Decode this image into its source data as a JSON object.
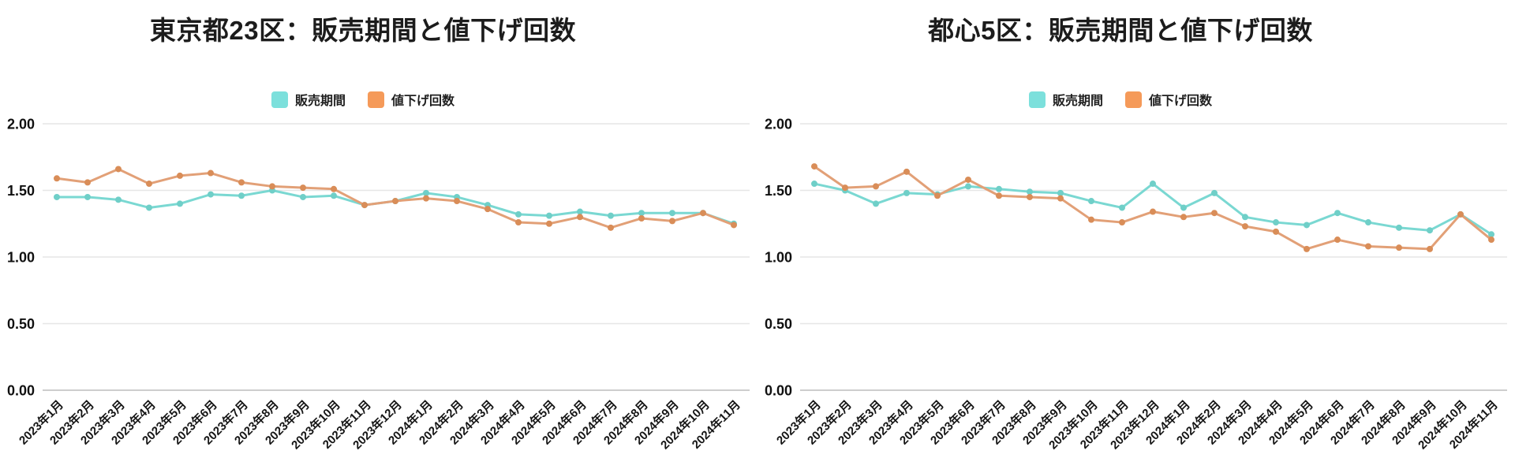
{
  "page": {
    "background": "#ffffff"
  },
  "colors": {
    "title_text": "#1c1c1c",
    "axis_text": "#101010",
    "gridline": "#e6e6e6",
    "baseline": "#cdcdcd",
    "sales_period_line": "#7ad8d2",
    "sales_period_marker": "#6fcfc8",
    "sales_period_swatch": "#7ce0dc",
    "price_cut_line": "#e2a077",
    "price_cut_marker": "#d98d58",
    "price_cut_swatch": "#f59a59"
  },
  "chart_data": [
    {
      "type": "line",
      "title": "東京都23区：販売期間と値下げ回数",
      "legend_position": "top",
      "grid": true,
      "ylim": [
        0,
        2.0
      ],
      "yticks": [
        "0.00",
        "0.50",
        "1.00",
        "1.50",
        "2.00"
      ],
      "categories": [
        "2023年1月",
        "2023年2月",
        "2023年3月",
        "2023年4月",
        "2023年5月",
        "2023年6月",
        "2023年7月",
        "2023年8月",
        "2023年9月",
        "2023年10月",
        "2023年11月",
        "2023年12月",
        "2024年1月",
        "2024年2月",
        "2024年3月",
        "2024年4月",
        "2024年5月",
        "2024年6月",
        "2024年7月",
        "2024年8月",
        "2024年9月",
        "2024年10月",
        "2024年11月"
      ],
      "series": [
        {
          "name": "販売期間",
          "color": "#7ad8d2",
          "marker_color": "#6fcfc8",
          "swatch_color": "#7ce0dc",
          "values": [
            1.45,
            1.45,
            1.43,
            1.37,
            1.4,
            1.47,
            1.46,
            1.5,
            1.45,
            1.46,
            1.39,
            1.42,
            1.48,
            1.45,
            1.39,
            1.32,
            1.31,
            1.34,
            1.31,
            1.33,
            1.33,
            1.33,
            1.25
          ]
        },
        {
          "name": "値下げ回数",
          "color": "#e2a077",
          "marker_color": "#d98d58",
          "swatch_color": "#f59a59",
          "values": [
            1.59,
            1.56,
            1.66,
            1.55,
            1.61,
            1.63,
            1.56,
            1.53,
            1.52,
            1.51,
            1.39,
            1.42,
            1.44,
            1.42,
            1.36,
            1.26,
            1.25,
            1.3,
            1.22,
            1.29,
            1.27,
            1.33,
            1.24
          ]
        }
      ]
    },
    {
      "type": "line",
      "title": "都心5区：販売期間と値下げ回数",
      "legend_position": "top",
      "grid": true,
      "ylim": [
        0,
        2.0
      ],
      "yticks": [
        "0.00",
        "0.50",
        "1.00",
        "1.50",
        "2.00"
      ],
      "categories": [
        "2023年1月",
        "2023年2月",
        "2023年3月",
        "2023年4月",
        "2023年5月",
        "2023年6月",
        "2023年7月",
        "2023年8月",
        "2023年9月",
        "2023年10月",
        "2023年11月",
        "2023年12月",
        "2024年1月",
        "2024年2月",
        "2024年3月",
        "2024年4月",
        "2024年5月",
        "2024年6月",
        "2024年7月",
        "2024年8月",
        "2024年9月",
        "2024年10月",
        "2024年11月"
      ],
      "series": [
        {
          "name": "販売期間",
          "color": "#7ad8d2",
          "marker_color": "#6fcfc8",
          "swatch_color": "#7ce0dc",
          "values": [
            1.55,
            1.5,
            1.4,
            1.48,
            1.47,
            1.53,
            1.51,
            1.49,
            1.48,
            1.42,
            1.37,
            1.55,
            1.37,
            1.48,
            1.3,
            1.26,
            1.24,
            1.33,
            1.26,
            1.22,
            1.2,
            1.32,
            1.17
          ]
        },
        {
          "name": "値下げ回数",
          "color": "#e2a077",
          "marker_color": "#d98d58",
          "swatch_color": "#f59a59",
          "values": [
            1.68,
            1.52,
            1.53,
            1.64,
            1.46,
            1.58,
            1.46,
            1.45,
            1.44,
            1.28,
            1.26,
            1.34,
            1.3,
            1.33,
            1.23,
            1.19,
            1.06,
            1.13,
            1.08,
            1.07,
            1.06,
            1.32,
            1.13
          ]
        }
      ]
    }
  ]
}
